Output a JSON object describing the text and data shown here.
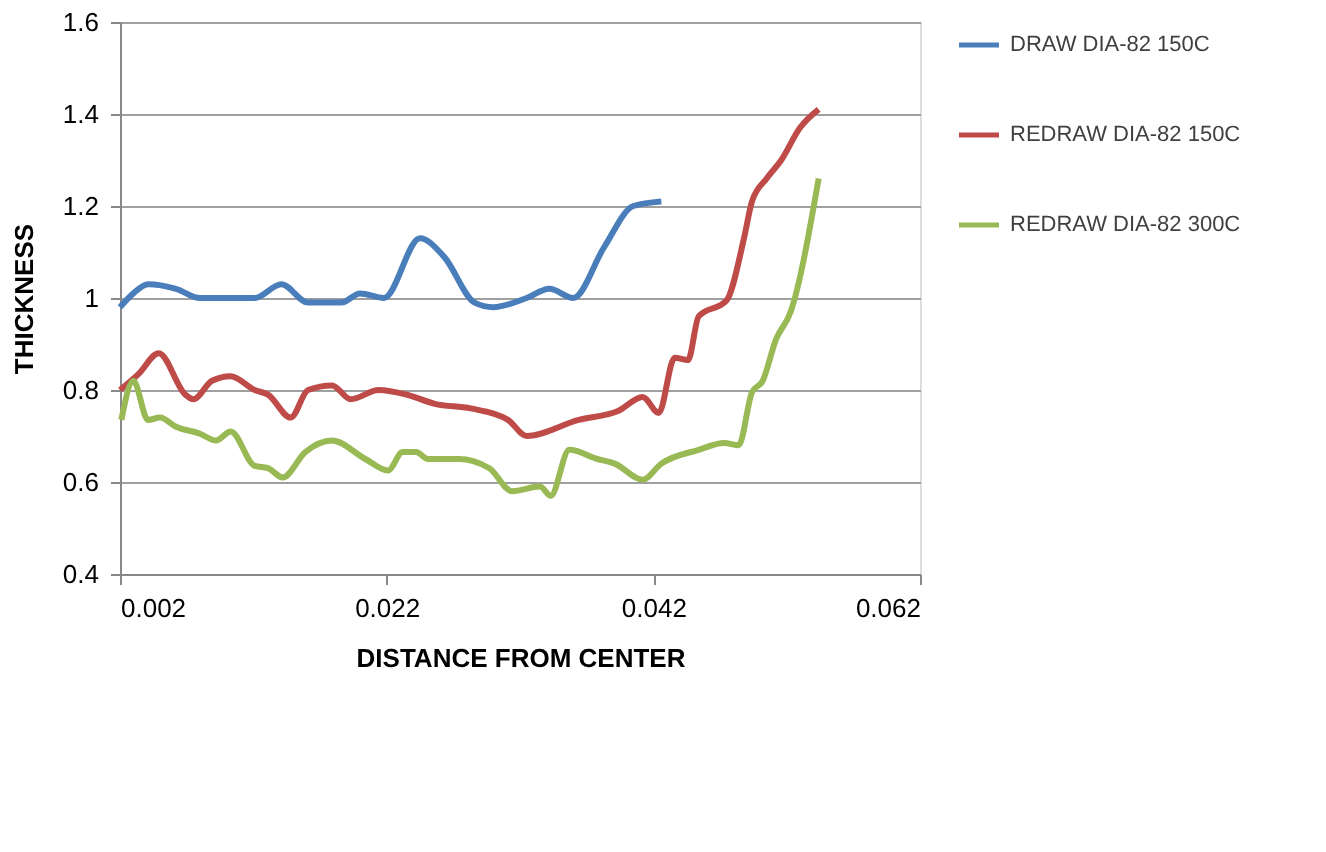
{
  "chart_data": {
    "type": "line",
    "xlabel": "DISTANCE FROM CENTER",
    "ylabel": "THICKNESS",
    "xlim": [
      0.002,
      0.062
    ],
    "xticks": [
      0.002,
      0.022,
      0.042,
      0.062
    ],
    "ylim": [
      0.4,
      1.6
    ],
    "yticks": [
      0.4,
      0.6,
      0.8,
      1,
      1.2,
      1.4,
      1.6
    ],
    "grid": "y",
    "legend": "right",
    "marker": "none",
    "line_style": "solid",
    "series": [
      {
        "name": "DRAW DIA-82 150C",
        "color": "#4a7ebb",
        "x": [
          0.002,
          0.003,
          0.0041,
          0.0062,
          0.008,
          0.0103,
          0.0121,
          0.0141,
          0.0161,
          0.0186,
          0.02,
          0.0218,
          0.0245,
          0.0263,
          0.0286,
          0.03,
          0.0325,
          0.0342,
          0.036,
          0.0383,
          0.0405,
          0.0426
        ],
        "values": [
          0.98,
          1.01,
          1.03,
          1.02,
          1.0,
          1.0,
          1.0,
          1.03,
          0.99,
          0.99,
          1.01,
          1.0,
          1.13,
          1.09,
          0.99,
          0.98,
          1.0,
          1.02,
          1.0,
          1.11,
          1.2,
          1.21
        ]
      },
      {
        "name": "REDRAW DIA-82 150C",
        "color": "#be4b48",
        "x": [
          0.002,
          0.0034,
          0.0049,
          0.0069,
          0.0075,
          0.0089,
          0.0103,
          0.0121,
          0.0131,
          0.0148,
          0.0161,
          0.0179,
          0.0193,
          0.0214,
          0.0235,
          0.0256,
          0.0283,
          0.0311,
          0.0325,
          0.0364,
          0.0394,
          0.0412,
          0.0424,
          0.0436,
          0.0446,
          0.0454,
          0.0475,
          0.0488,
          0.0494,
          0.0505,
          0.0516,
          0.053,
          0.0544
        ],
        "values": [
          0.8,
          0.835,
          0.88,
          0.79,
          0.78,
          0.82,
          0.83,
          0.8,
          0.79,
          0.74,
          0.8,
          0.81,
          0.78,
          0.8,
          0.79,
          0.77,
          0.76,
          0.735,
          0.7,
          0.735,
          0.755,
          0.785,
          0.75,
          0.87,
          0.865,
          0.96,
          0.995,
          1.13,
          1.21,
          1.26,
          1.3,
          1.37,
          1.41
        ]
      },
      {
        "name": "REDRAW DIA-82 300C",
        "color": "#98b954",
        "x": [
          0.0021,
          0.003,
          0.0041,
          0.005,
          0.0062,
          0.008,
          0.0092,
          0.0103,
          0.0121,
          0.0131,
          0.0142,
          0.0159,
          0.0179,
          0.0204,
          0.0221,
          0.0232,
          0.0242,
          0.0251,
          0.0274,
          0.0297,
          0.0314,
          0.0335,
          0.0343,
          0.0357,
          0.0378,
          0.0391,
          0.0412,
          0.0426,
          0.0454,
          0.0473,
          0.0484,
          0.0494,
          0.0502,
          0.0512,
          0.0523,
          0.0544
        ],
        "values": [
          0.735,
          0.82,
          0.735,
          0.74,
          0.72,
          0.705,
          0.69,
          0.71,
          0.635,
          0.63,
          0.61,
          0.665,
          0.69,
          0.65,
          0.625,
          0.665,
          0.665,
          0.65,
          0.65,
          0.63,
          0.58,
          0.59,
          0.57,
          0.67,
          0.65,
          0.64,
          0.605,
          0.64,
          0.67,
          0.685,
          0.68,
          0.795,
          0.82,
          0.91,
          0.97,
          1.26
        ]
      }
    ]
  }
}
